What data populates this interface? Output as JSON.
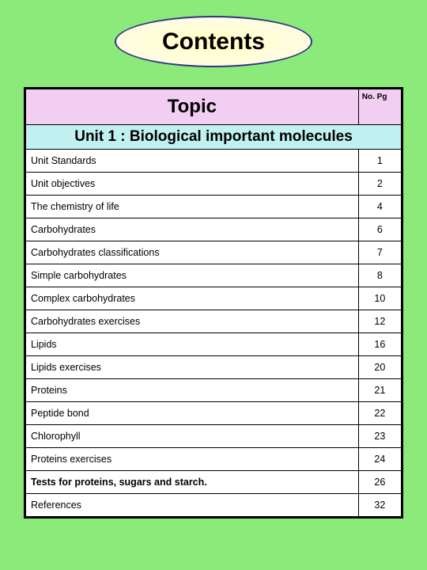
{
  "title": "Contents",
  "colors": {
    "page_bg": "#8bea7a",
    "oval_fill": "#fffde0",
    "oval_border": "#333388",
    "header_bg": "#f2cef2",
    "unit_bg": "#c0f0f0",
    "row_bg": "#ffffff",
    "border": "#000000"
  },
  "table": {
    "topic_header": "Topic",
    "page_header": "No. Pg",
    "unit_label": "Unit 1 :",
    "unit_name": "Biological important molecules",
    "rows": [
      {
        "topic": "Unit Standards",
        "page": "1",
        "bold": false
      },
      {
        "topic": "Unit objectives",
        "page": "2",
        "bold": false
      },
      {
        "topic": "The chemistry of life",
        "page": "4",
        "bold": false
      },
      {
        "topic": "Carbohydrates",
        "page": "6",
        "bold": false
      },
      {
        "topic": "Carbohydrates classifications",
        "page": "7",
        "bold": false
      },
      {
        "topic": "Simple carbohydrates",
        "page": "8",
        "bold": false
      },
      {
        "topic": "Complex carbohydrates",
        "page": "10",
        "bold": false
      },
      {
        "topic": "Carbohydrates exercises",
        "page": "12",
        "bold": false
      },
      {
        "topic": "Lipids",
        "page": "16",
        "bold": false
      },
      {
        "topic": "Lipids exercises",
        "page": "20",
        "bold": false
      },
      {
        "topic": "Proteins",
        "page": "21",
        "bold": false
      },
      {
        "topic": "Peptide bond",
        "page": "22",
        "bold": false
      },
      {
        "topic": "Chlorophyll",
        "page": "23",
        "bold": false
      },
      {
        "topic": "Proteins exercises",
        "page": "24",
        "bold": false
      },
      {
        "topic": "Tests for proteins, sugars and starch.",
        "page": "26",
        "bold": true
      },
      {
        "topic": "References",
        "page": "32",
        "bold": false
      }
    ]
  }
}
